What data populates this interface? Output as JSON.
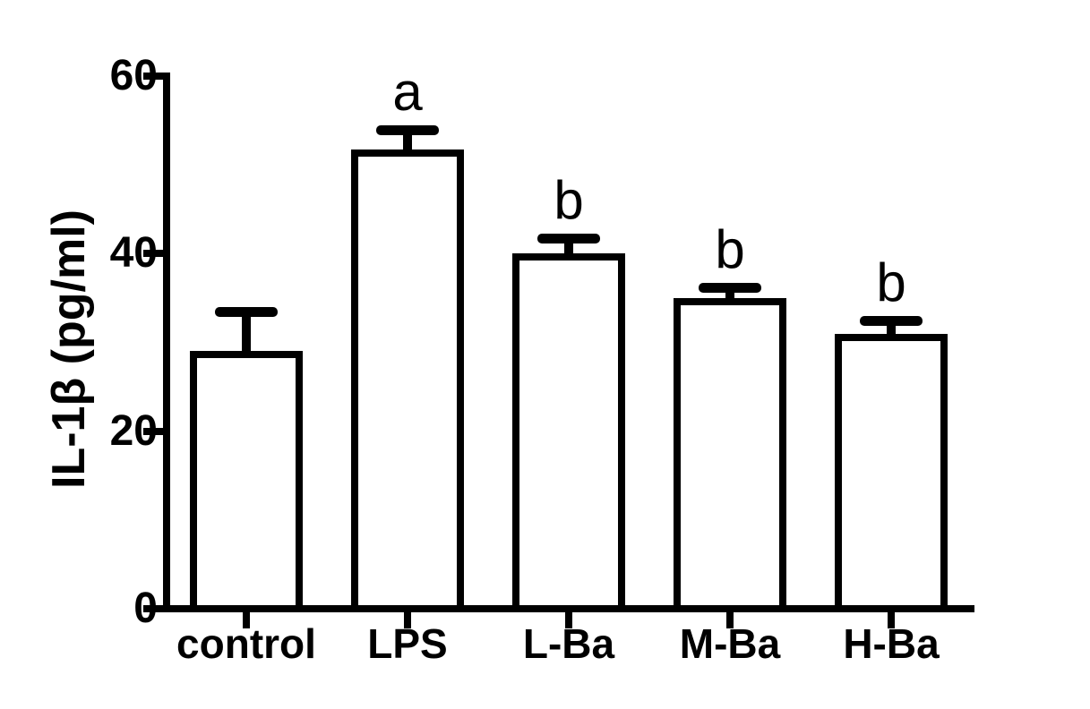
{
  "chart_data": {
    "type": "bar",
    "title": "",
    "ylabel": "IL-1β (pg/ml)",
    "xlabel": "",
    "categories": [
      "control",
      "LPS",
      "L-Ba",
      "M-Ba",
      "H-Ba"
    ],
    "values": [
      29,
      51.7,
      40,
      35,
      31
    ],
    "errors": [
      4.5,
      2.3,
      1.7,
      1.2,
      1.5
    ],
    "annotations": [
      "",
      "a",
      "b",
      "b",
      "b"
    ],
    "ylim": [
      0,
      60
    ],
    "yticks": [
      0,
      20,
      40,
      60
    ],
    "grid": false,
    "legend": "none",
    "bar_fill": "#ffffff",
    "stroke_color": "#000000",
    "background": "#ffffff"
  }
}
